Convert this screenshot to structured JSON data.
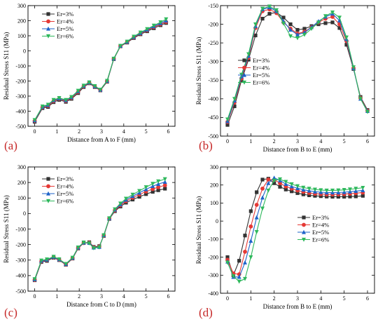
{
  "chart_data": [
    {
      "type": "line",
      "panel_label": "(a)",
      "xlabel": "Distance from A to F (mm)",
      "ylabel": "Residual Stress S11 (MPa)",
      "xlim": [
        -0.3,
        6.3
      ],
      "ylim": [
        -500,
        300
      ],
      "xticks": [
        0,
        1,
        2,
        3,
        4,
        5,
        6
      ],
      "yticks": [
        -500,
        -400,
        -300,
        -200,
        -100,
        0,
        100,
        200,
        300
      ],
      "legend_position": "top-left",
      "grid": false,
      "x": [
        0,
        0.35,
        0.6,
        0.85,
        1.1,
        1.4,
        1.65,
        1.95,
        2.2,
        2.45,
        2.7,
        2.95,
        3.25,
        3.55,
        3.85,
        4.15,
        4.45,
        4.75,
        5.05,
        5.35,
        5.65,
        5.9
      ],
      "series": [
        {
          "name": "Er=3%",
          "color": "#333333",
          "marker": "square",
          "values": [
            -470,
            -380,
            -372,
            -340,
            -325,
            -338,
            -318,
            -280,
            -240,
            -215,
            -240,
            -262,
            -205,
            -55,
            30,
            55,
            85,
            110,
            130,
            150,
            170,
            185
          ]
        },
        {
          "name": "Er=4%",
          "color": "#e53935",
          "marker": "circle",
          "values": [
            -465,
            -375,
            -365,
            -333,
            -318,
            -332,
            -312,
            -273,
            -235,
            -212,
            -237,
            -260,
            -202,
            -53,
            32,
            58,
            89,
            115,
            136,
            157,
            177,
            192
          ]
        },
        {
          "name": "Er=5%",
          "color": "#1e63c9",
          "marker": "triangle",
          "values": [
            -462,
            -372,
            -360,
            -328,
            -315,
            -328,
            -308,
            -268,
            -232,
            -210,
            -235,
            -258,
            -200,
            -52,
            33,
            60,
            92,
            118,
            140,
            162,
            183,
            200
          ]
        },
        {
          "name": "Er=6%",
          "color": "#2eb85c",
          "marker": "tri-down",
          "values": [
            -458,
            -368,
            -356,
            -325,
            -312,
            -325,
            -305,
            -264,
            -230,
            -208,
            -233,
            -257,
            -198,
            -51,
            34,
            62,
            95,
            122,
            145,
            168,
            190,
            210
          ]
        }
      ]
    },
    {
      "type": "line",
      "panel_label": "(b)",
      "xlabel": "Distance from B to E (mm)",
      "ylabel": "Residual Stress S11 (MPa)",
      "xlim": [
        -0.3,
        6.3
      ],
      "ylim": [
        -500,
        -150
      ],
      "xticks": [
        0,
        1,
        2,
        3,
        4,
        5,
        6
      ],
      "yticks": [
        -500,
        -450,
        -400,
        -350,
        -300,
        -250,
        -200,
        -150
      ],
      "legend_position": "center-left",
      "grid": false,
      "x": [
        0,
        0.3,
        0.6,
        0.9,
        1.2,
        1.5,
        1.8,
        2.1,
        2.4,
        2.7,
        3.0,
        3.3,
        3.6,
        3.9,
        4.2,
        4.5,
        4.8,
        5.1,
        5.4,
        5.7,
        6.0
      ],
      "series": [
        {
          "name": "Er=3%",
          "color": "#333333",
          "marker": "square",
          "values": [
            -470,
            -420,
            -350,
            -295,
            -230,
            -185,
            -172,
            -168,
            -182,
            -200,
            -215,
            -212,
            -205,
            -200,
            -197,
            -195,
            -210,
            -255,
            -320,
            -395,
            -430
          ]
        },
        {
          "name": "Er=4%",
          "color": "#e53935",
          "marker": "circle",
          "values": [
            -462,
            -410,
            -345,
            -290,
            -210,
            -165,
            -160,
            -170,
            -195,
            -212,
            -225,
            -220,
            -208,
            -195,
            -185,
            -180,
            -200,
            -245,
            -318,
            -398,
            -432
          ]
        },
        {
          "name": "Er=5%",
          "color": "#1e63c9",
          "marker": "triangle",
          "values": [
            -460,
            -405,
            -340,
            -285,
            -205,
            -160,
            -155,
            -165,
            -192,
            -215,
            -228,
            -222,
            -208,
            -192,
            -180,
            -172,
            -190,
            -240,
            -318,
            -400,
            -433
          ]
        },
        {
          "name": "Er=6%",
          "color": "#2eb85c",
          "marker": "tri-down",
          "values": [
            -455,
            -400,
            -335,
            -280,
            -200,
            -158,
            -152,
            -162,
            -198,
            -232,
            -237,
            -228,
            -212,
            -195,
            -178,
            -168,
            -182,
            -235,
            -315,
            -400,
            -435
          ]
        }
      ]
    },
    {
      "type": "line",
      "panel_label": "(c)",
      "xlabel": "Distance from C to D (mm)",
      "ylabel": "Residual Stress S11 (MPa)",
      "xlim": [
        -0.3,
        6.3
      ],
      "ylim": [
        -500,
        300
      ],
      "xticks": [
        0,
        1,
        2,
        3,
        4,
        5,
        6
      ],
      "yticks": [
        -500,
        -400,
        -300,
        -200,
        -100,
        0,
        100,
        200,
        300
      ],
      "legend_position": "top-left",
      "grid": false,
      "x": [
        0,
        0.3,
        0.55,
        0.85,
        1.1,
        1.4,
        1.7,
        1.95,
        2.2,
        2.45,
        2.65,
        2.9,
        3.1,
        3.35,
        3.6,
        3.85,
        4.1,
        4.4,
        4.7,
        5.0,
        5.3,
        5.55,
        5.85
      ],
      "series": [
        {
          "name": "Er=3%",
          "color": "#333333",
          "marker": "square",
          "values": [
            -430,
            -312,
            -305,
            -285,
            -300,
            -330,
            -290,
            -225,
            -190,
            -185,
            -215,
            -210,
            -145,
            -35,
            15,
            45,
            70,
            90,
            108,
            125,
            140,
            150,
            160
          ]
        },
        {
          "name": "Er=4%",
          "color": "#e53935",
          "marker": "circle",
          "values": [
            -428,
            -308,
            -300,
            -282,
            -298,
            -328,
            -288,
            -222,
            -190,
            -188,
            -218,
            -213,
            -143,
            -33,
            20,
            52,
            80,
            102,
            122,
            142,
            158,
            170,
            182
          ]
        },
        {
          "name": "Er=5%",
          "color": "#1e63c9",
          "marker": "triangle",
          "values": [
            -425,
            -305,
            -298,
            -280,
            -296,
            -326,
            -286,
            -220,
            -188,
            -190,
            -220,
            -216,
            -141,
            -31,
            24,
            58,
            88,
            112,
            134,
            156,
            176,
            190,
            203
          ]
        },
        {
          "name": "Er=6%",
          "color": "#2eb85c",
          "marker": "tri-down",
          "values": [
            -422,
            -302,
            -295,
            -278,
            -294,
            -324,
            -284,
            -218,
            -186,
            -192,
            -223,
            -218,
            -139,
            -30,
            28,
            65,
            96,
            122,
            146,
            170,
            192,
            208,
            222
          ]
        }
      ]
    },
    {
      "type": "line",
      "panel_label": "(d)",
      "xlabel": "Distance from B to E (mm)",
      "ylabel": "Residual Stress S11 (MPa)",
      "xlim": [
        -0.3,
        6.3
      ],
      "ylim": [
        -400,
        300
      ],
      "xticks": [
        0,
        1,
        2,
        3,
        4,
        5,
        6
      ],
      "yticks": [
        -400,
        -300,
        -200,
        -100,
        0,
        100,
        200,
        300
      ],
      "legend_position": "center",
      "grid": false,
      "x": [
        0,
        0.25,
        0.5,
        0.75,
        1.0,
        1.25,
        1.5,
        1.75,
        2.0,
        2.25,
        2.5,
        2.75,
        3.0,
        3.25,
        3.5,
        3.75,
        4.0,
        4.25,
        4.5,
        4.75,
        5.0,
        5.25,
        5.5,
        5.8
      ],
      "series": [
        {
          "name": "Er=3%",
          "color": "#333333",
          "marker": "square",
          "values": [
            -200,
            -300,
            -220,
            -80,
            55,
            160,
            230,
            235,
            210,
            190,
            175,
            165,
            155,
            148,
            143,
            140,
            138,
            136,
            135,
            135,
            135,
            136,
            137,
            140
          ]
        },
        {
          "name": "Er=4%",
          "color": "#e53935",
          "marker": "circle",
          "values": [
            -215,
            -290,
            -295,
            -170,
            -30,
            90,
            180,
            230,
            230,
            210,
            192,
            180,
            170,
            162,
            156,
            152,
            150,
            148,
            148,
            148,
            150,
            152,
            155,
            158
          ]
        },
        {
          "name": "Er=5%",
          "color": "#1e63c9",
          "marker": "triangle",
          "values": [
            -225,
            -310,
            -310,
            -230,
            -110,
            20,
            130,
            210,
            240,
            225,
            205,
            192,
            182,
            174,
            168,
            163,
            160,
            158,
            158,
            158,
            160,
            163,
            166,
            170
          ]
        },
        {
          "name": "Er=6%",
          "color": "#2eb85c",
          "marker": "tri-down",
          "values": [
            -230,
            -305,
            -335,
            -320,
            -200,
            -60,
            70,
            170,
            225,
            232,
            218,
            205,
            194,
            186,
            180,
            175,
            172,
            170,
            170,
            171,
            173,
            176,
            180,
            185
          ]
        }
      ]
    }
  ]
}
